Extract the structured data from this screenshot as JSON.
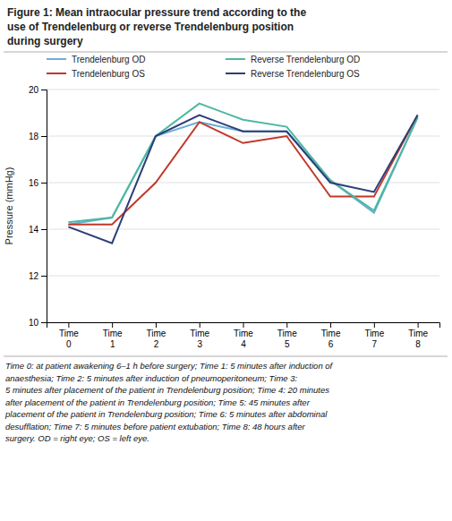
{
  "chart_data": {
    "type": "line",
    "title": "Figure 1: Mean intraocular pressure trend according to the\nuse of Trendelenburg or reverse Trendelenburg position\nduring surgery",
    "y_label": "Pressure (mmHg)",
    "categories": [
      "Time\n0",
      "Time\n1",
      "Time\n2",
      "Time\n3",
      "Time\n4",
      "Time\n5",
      "Time\n6",
      "Time\n7",
      "Time\n8"
    ],
    "series": [
      {
        "name": "Trendelenburg OD",
        "color": "#6baed6",
        "values": [
          14.2,
          14.5,
          18.0,
          18.6,
          18.2,
          18.2,
          16.1,
          14.7,
          18.8
        ]
      },
      {
        "name": "Trendelenburg OS",
        "color": "#c0392b",
        "values": [
          14.2,
          14.2,
          16.0,
          18.6,
          17.7,
          18.0,
          15.4,
          15.4,
          18.9
        ]
      },
      {
        "name": "Reverse Trendelenburg OD",
        "color": "#4db8a0",
        "values": [
          14.3,
          14.5,
          18.0,
          19.4,
          18.7,
          18.4,
          16.1,
          14.8,
          18.8
        ]
      },
      {
        "name": "Reverse Trendelenburg OS",
        "color": "#2c3e7a",
        "values": [
          14.1,
          13.4,
          18.0,
          18.9,
          18.2,
          18.2,
          16.0,
          15.6,
          18.9
        ]
      }
    ],
    "ylim": [
      10,
      20
    ],
    "yticks": [
      10,
      12,
      14,
      16,
      18,
      20
    ],
    "grid": true,
    "legend": "top",
    "caption": "Time 0: at patient awakening 6–1 h before surgery; Time 1: 5 minutes after induction of\nanaesthesia; Time 2: 5 minutes after induction of pneumoperitoneum; Time 3:\n5 minutes after placement of the patient in Trendelenburg position; Time 4: 20 minutes\nafter placement of the patient in Trendelenburg position; Time 5: 45 minutes after\nplacement of the patient in Trendelenburg position; Time 6: 5 minutes after abdominal\ndesufflation; Time 7: 5 minutes before patient extubation; Time 8: 48 hours after\nsurgery. OD = right eye; OS = left eye."
  }
}
